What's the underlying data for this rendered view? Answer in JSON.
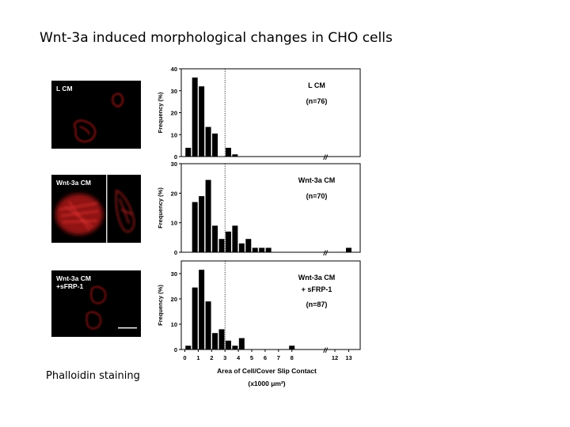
{
  "title": "Wnt-3a induced morphological changes in CHO cells",
  "stain_label": "Phalloidin staining",
  "micro_labels": [
    "L CM",
    "Wnt-3a CM",
    "Wnt-3a CM\n+sFRP-1"
  ],
  "colors": {
    "cell_red": "#d42020",
    "background": "#000000",
    "bar": "#000000"
  },
  "chart_data": [
    {
      "type": "bar",
      "title": "L CM",
      "n_label": "(n=76)",
      "ylabel": "Frequency (%)",
      "ylim": [
        0,
        40
      ],
      "yticks": [
        "0",
        "10",
        "20",
        "30",
        "40"
      ],
      "bins": [
        0.25,
        0.75,
        1.25,
        1.75,
        2.25,
        2.75,
        3.25,
        3.75,
        4.25
      ],
      "values": [
        4,
        36,
        32,
        13.5,
        10.5,
        0,
        4,
        1,
        0
      ],
      "cutoff": 3
    },
    {
      "type": "bar",
      "title": "Wnt-3a CM",
      "n_label": "(n=70)",
      "ylabel": "Frequency (%)",
      "ylim": [
        0,
        30
      ],
      "yticks": [
        "0",
        "10",
        "20",
        "30"
      ],
      "bins": [
        0.75,
        1.25,
        1.75,
        2.25,
        2.75,
        3.25,
        3.75,
        4.25,
        4.75,
        5.25,
        5.75,
        6.25,
        13
      ],
      "values": [
        17,
        19,
        24.5,
        9,
        4.5,
        7,
        9,
        3,
        4.5,
        1.5,
        1.5,
        1.5,
        1.5
      ],
      "cutoff": 3
    },
    {
      "type": "bar",
      "title": "Wnt-3a CM",
      "title2": "+ sFRP-1",
      "n_label": "(n=87)",
      "ylabel": "Frequency (%)",
      "ylim": [
        0,
        35
      ],
      "yticks": [
        "0",
        "10",
        "20",
        "30"
      ],
      "bins": [
        0.25,
        0.75,
        1.25,
        1.75,
        2.25,
        2.75,
        3.25,
        3.75,
        4.25,
        8
      ],
      "values": [
        1.5,
        24.5,
        31.5,
        19,
        6.5,
        8,
        3.5,
        1.5,
        4.5,
        1.5
      ],
      "cutoff": 3
    }
  ],
  "x_axis": {
    "ticks": [
      "0",
      "1",
      "2",
      "3",
      "4",
      "5",
      "6",
      "7",
      "8",
      "12",
      "13"
    ],
    "label": "Area of Cell/Cover Slip Contact",
    "unit": "(x1000 μm²)",
    "break_mark": "//"
  }
}
